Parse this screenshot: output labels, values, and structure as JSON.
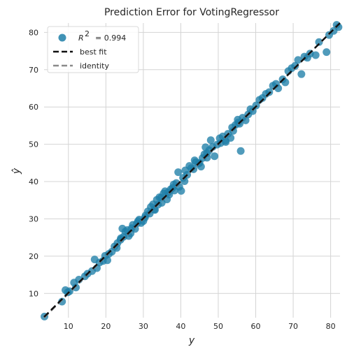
{
  "chart_data": {
    "type": "scatter",
    "title": "Prediction Error for VotingRegressor",
    "xlabel": "y",
    "ylabel": "ŷ",
    "xlim": [
      3.5,
      82.5
    ],
    "ylim": [
      3.5,
      82.5
    ],
    "xticks": [
      10,
      20,
      30,
      40,
      50,
      60,
      70,
      80
    ],
    "yticks": [
      10,
      20,
      30,
      40,
      50,
      60,
      70,
      80
    ],
    "tick_labels": [
      "10",
      "20",
      "30",
      "40",
      "50",
      "60",
      "70",
      "80"
    ],
    "grid": true,
    "legend_position": "top-left",
    "legend": {
      "r2_label": "R",
      "r2_superscript": "2",
      "r2_value": "= 0.994",
      "best_fit_label": "best fit",
      "identity_label": "identity"
    },
    "colors": {
      "points": "#1f7fa8",
      "best_fit": "#111111",
      "identity": "#8a8a8a",
      "grid": "#d4d4d4",
      "background": "#ffffff"
    },
    "best_fit": {
      "slope": 1.0,
      "intercept": 0.2
    },
    "points": [
      [
        3.6,
        3.8
      ],
      [
        8.3,
        7.8
      ],
      [
        9.2,
        10.9
      ],
      [
        9.8,
        10.3
      ],
      [
        10.3,
        10.6
      ],
      [
        11.5,
        12.9
      ],
      [
        12.0,
        11.6
      ],
      [
        12.8,
        13.7
      ],
      [
        14.4,
        14.6
      ],
      [
        15.1,
        15.3
      ],
      [
        16.3,
        16.0
      ],
      [
        17.0,
        19.1
      ],
      [
        17.6,
        16.8
      ],
      [
        18.3,
        18.3
      ],
      [
        19.2,
        18.7
      ],
      [
        19.8,
        20.1
      ],
      [
        20.4,
        18.9
      ],
      [
        20.8,
        20.6
      ],
      [
        21.6,
        21.2
      ],
      [
        22.3,
        22.6
      ],
      [
        23.1,
        23.5
      ],
      [
        23.9,
        24.4
      ],
      [
        24.4,
        27.4
      ],
      [
        24.7,
        25.2
      ],
      [
        25.2,
        26.6
      ],
      [
        25.7,
        27.0
      ],
      [
        26.1,
        25.4
      ],
      [
        26.6,
        26.1
      ],
      [
        27.2,
        28.4
      ],
      [
        27.8,
        27.3
      ],
      [
        28.3,
        28.8
      ],
      [
        28.9,
        29.8
      ],
      [
        29.4,
        28.9
      ],
      [
        30.0,
        29.4
      ],
      [
        30.6,
        30.9
      ],
      [
        31.2,
        32.0
      ],
      [
        31.7,
        31.4
      ],
      [
        32.0,
        33.2
      ],
      [
        32.6,
        33.9
      ],
      [
        33.1,
        32.4
      ],
      [
        33.6,
        35.1
      ],
      [
        33.9,
        33.8
      ],
      [
        34.3,
        35.8
      ],
      [
        34.9,
        34.3
      ],
      [
        35.4,
        36.8
      ],
      [
        35.8,
        37.4
      ],
      [
        36.3,
        35.2
      ],
      [
        36.9,
        36.5
      ],
      [
        37.3,
        37.9
      ],
      [
        37.8,
        38.3
      ],
      [
        38.3,
        37.6
      ],
      [
        38.8,
        39.6
      ],
      [
        39.3,
        42.5
      ],
      [
        39.6,
        38.6
      ],
      [
        40.1,
        37.5
      ],
      [
        40.6,
        41.0
      ],
      [
        41.2,
        43.0
      ],
      [
        41.7,
        41.8
      ],
      [
        42.3,
        44.2
      ],
      [
        42.8,
        43.6
      ],
      [
        43.4,
        43.3
      ],
      [
        44.0,
        45.2
      ],
      [
        44.7,
        44.8
      ],
      [
        45.4,
        44.0
      ],
      [
        45.8,
        46.3
      ],
      [
        46.3,
        47.3
      ],
      [
        46.6,
        49.2
      ],
      [
        47.0,
        47.6
      ],
      [
        47.6,
        48.4
      ],
      [
        48.0,
        51.1
      ],
      [
        48.5,
        49.3
      ],
      [
        49.0,
        46.8
      ],
      [
        49.7,
        49.9
      ],
      [
        50.4,
        51.6
      ],
      [
        51.2,
        52.1
      ],
      [
        51.9,
        51.0
      ],
      [
        52.6,
        52.8
      ],
      [
        53.3,
        51.7
      ],
      [
        54.0,
        53.6
      ],
      [
        54.6,
        55.2
      ],
      [
        55.2,
        56.6
      ],
      [
        55.7,
        55.5
      ],
      [
        56.0,
        48.2
      ],
      [
        56.5,
        57.1
      ],
      [
        57.3,
        56.4
      ],
      [
        58.0,
        58.0
      ],
      [
        58.6,
        59.4
      ],
      [
        59.2,
        58.9
      ],
      [
        60.1,
        60.4
      ],
      [
        61.0,
        61.9
      ],
      [
        61.8,
        62.4
      ],
      [
        62.7,
        63.5
      ],
      [
        63.6,
        64.0
      ],
      [
        64.6,
        65.7
      ],
      [
        65.4,
        66.2
      ],
      [
        66.0,
        65.0
      ],
      [
        67.2,
        67.4
      ],
      [
        67.9,
        66.6
      ],
      [
        68.7,
        69.6
      ],
      [
        69.6,
        70.4
      ],
      [
        70.5,
        71.0
      ],
      [
        71.3,
        72.6
      ],
      [
        72.2,
        68.8
      ],
      [
        73.0,
        73.5
      ],
      [
        73.8,
        73.2
      ],
      [
        74.5,
        74.3
      ],
      [
        76.0,
        73.9
      ],
      [
        76.9,
        77.4
      ],
      [
        78.9,
        74.7
      ],
      [
        79.6,
        79.3
      ],
      [
        80.8,
        80.4
      ],
      [
        81.6,
        82.0
      ],
      [
        82.1,
        81.4
      ],
      [
        47.0,
        46.4
      ],
      [
        50.6,
        50.3
      ],
      [
        34.8,
        35.7
      ],
      [
        30.4,
        30.3
      ],
      [
        36.6,
        37.1
      ],
      [
        38.1,
        39.2
      ],
      [
        43.7,
        45.7
      ],
      [
        53.7,
        54.5
      ],
      [
        26.9,
        27.5
      ],
      [
        22.9,
        22.2
      ],
      [
        28.6,
        29.4
      ],
      [
        41.0,
        40.1
      ],
      [
        45.0,
        45.0
      ],
      [
        55.3,
        55.8
      ],
      [
        52.0,
        50.6
      ],
      [
        32.9,
        32.5
      ],
      [
        24.0,
        24.8
      ]
    ]
  }
}
